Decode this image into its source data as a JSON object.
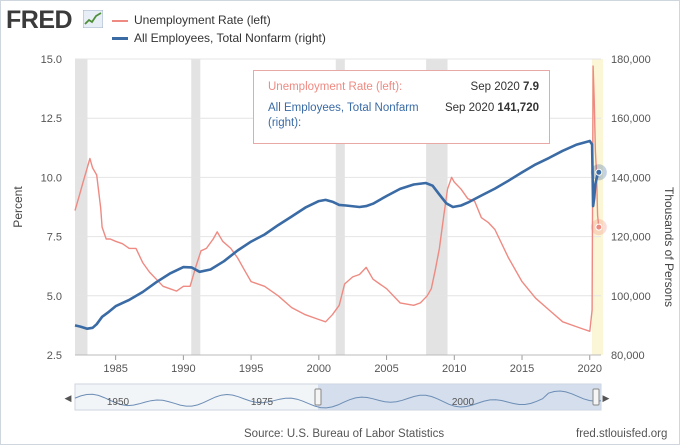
{
  "brand": {
    "name": "FRED"
  },
  "legend": {
    "series1": "Unemployment Rate (left)",
    "series2": "All Employees, Total Nonfarm (right)"
  },
  "tooltip": {
    "row1_label": "Unemployment Rate (left):",
    "row1_date": "Sep 2020",
    "row1_value": "7.9",
    "row2_label_line1": "All Employees, Total Nonfarm",
    "row2_label_line2": "(right):",
    "row2_date": "Sep 2020",
    "row2_value": "141,720"
  },
  "navigator": {
    "labels": [
      "1950",
      "1975",
      "2000"
    ]
  },
  "footer": {
    "source": "Source: U.S. Bureau of Labor Statistics",
    "site": "fred.stlouisfed.org"
  },
  "colors": {
    "unemployment": "#ee8a82",
    "employees": "#3a6ba5",
    "recession": "#e3e3e3",
    "highlight": "#fbf6d6"
  },
  "chart_data": {
    "type": "line",
    "title": "",
    "xlabel": "",
    "ylabel_left": "Percent",
    "ylabel_right": "Thousands of Persons",
    "xlim": [
      1982.0,
      2020.83
    ],
    "ylim_left": [
      2.5,
      15.0
    ],
    "ylim_right": [
      80000,
      180000
    ],
    "x_ticks": [
      1985,
      1990,
      1995,
      2000,
      2005,
      2010,
      2015,
      2020
    ],
    "y_ticks_left": [
      "2.5",
      "5.0",
      "7.5",
      "10.0",
      "12.5",
      "15.0"
    ],
    "y_ticks_right": [
      "80,000",
      "100,000",
      "120,000",
      "140,000",
      "160,000",
      "180,000"
    ],
    "grid": true,
    "recessions": [
      [
        1982.0,
        1982.92
      ],
      [
        1990.58,
        1991.25
      ],
      [
        2001.25,
        2001.92
      ],
      [
        2007.92,
        2009.5
      ],
      [
        2020.17,
        2020.33
      ]
    ],
    "highlight_range": [
      2020.17,
      2020.83
    ],
    "series": [
      {
        "name": "Unemployment Rate (left)",
        "axis": "left",
        "x": [
          1982.0,
          1982.3,
          1982.6,
          1982.9,
          1983.1,
          1983.3,
          1983.6,
          1983.9,
          1984.0,
          1984.3,
          1984.6,
          1985.0,
          1985.5,
          1986.0,
          1986.5,
          1987.0,
          1987.5,
          1988.0,
          1988.5,
          1989.0,
          1989.5,
          1990.0,
          1990.5,
          1990.9,
          1991.3,
          1991.7,
          1992.2,
          1992.5,
          1992.9,
          1993.5,
          1994.0,
          1994.5,
          1995.0,
          1996.0,
          1997.0,
          1998.0,
          1999.0,
          2000.0,
          2000.5,
          2001.0,
          2001.5,
          2001.9,
          2002.5,
          2003.0,
          2003.5,
          2004.0,
          2004.5,
          2005.0,
          2006.0,
          2007.0,
          2007.5,
          2008.0,
          2008.3,
          2008.6,
          2008.9,
          2009.2,
          2009.5,
          2009.8,
          2010.0,
          2010.5,
          2011.0,
          2011.5,
          2012.0,
          2012.5,
          2013.0,
          2014.0,
          2015.0,
          2016.0,
          2017.0,
          2018.0,
          2019.0,
          2019.5,
          2020.0,
          2020.17,
          2020.25,
          2020.33,
          2020.42,
          2020.5,
          2020.58,
          2020.67
        ],
        "y": [
          8.6,
          9.2,
          9.8,
          10.4,
          10.8,
          10.4,
          10.1,
          8.7,
          7.9,
          7.4,
          7.4,
          7.3,
          7.2,
          7.0,
          7.0,
          6.4,
          6.0,
          5.7,
          5.4,
          5.3,
          5.2,
          5.4,
          5.4,
          6.2,
          6.9,
          7.0,
          7.4,
          7.7,
          7.3,
          7.0,
          6.6,
          6.1,
          5.6,
          5.4,
          5.0,
          4.5,
          4.2,
          4.0,
          3.9,
          4.2,
          4.6,
          5.5,
          5.8,
          5.9,
          6.2,
          5.7,
          5.5,
          5.3,
          4.7,
          4.6,
          4.7,
          5.0,
          5.3,
          6.1,
          7.0,
          8.3,
          9.5,
          10.0,
          9.8,
          9.5,
          9.1,
          9.0,
          8.3,
          8.1,
          7.8,
          6.6,
          5.6,
          4.9,
          4.4,
          3.9,
          3.7,
          3.6,
          3.5,
          4.4,
          14.7,
          13.3,
          11.1,
          10.2,
          8.4,
          7.9
        ]
      },
      {
        "name": "All Employees, Total Nonfarm (right)",
        "axis": "right",
        "x": [
          1982.0,
          1982.4,
          1982.9,
          1983.3,
          1983.6,
          1984.0,
          1984.5,
          1985.0,
          1986.0,
          1987.0,
          1988.0,
          1989.0,
          1990.0,
          1990.6,
          1991.2,
          1992.0,
          1993.0,
          1994.0,
          1995.0,
          1996.0,
          1997.0,
          1998.0,
          1999.0,
          2000.0,
          2000.5,
          2001.0,
          2001.5,
          2002.0,
          2003.0,
          2003.5,
          2004.0,
          2005.0,
          2006.0,
          2007.0,
          2007.9,
          2008.4,
          2008.9,
          2009.4,
          2009.9,
          2010.5,
          2011.0,
          2012.0,
          2013.0,
          2014.0,
          2015.0,
          2016.0,
          2017.0,
          2018.0,
          2019.0,
          2020.0,
          2020.17,
          2020.25,
          2020.33,
          2020.42,
          2020.5,
          2020.58,
          2020.67
        ],
        "y": [
          90000,
          89600,
          88900,
          89200,
          90400,
          92900,
          94600,
          96500,
          98600,
          101300,
          104600,
          107500,
          109700,
          109600,
          108100,
          108900,
          111700,
          115300,
          118300,
          120700,
          123900,
          126800,
          129800,
          132000,
          132400,
          131800,
          130700,
          130500,
          130000,
          130300,
          131100,
          133700,
          136100,
          137600,
          138100,
          137200,
          134200,
          131300,
          130000,
          130500,
          131500,
          133900,
          136200,
          138900,
          141700,
          144400,
          146600,
          149000,
          151000,
          152300,
          151100,
          130300,
          133000,
          137800,
          139500,
          140900,
          141720
        ]
      }
    ]
  }
}
